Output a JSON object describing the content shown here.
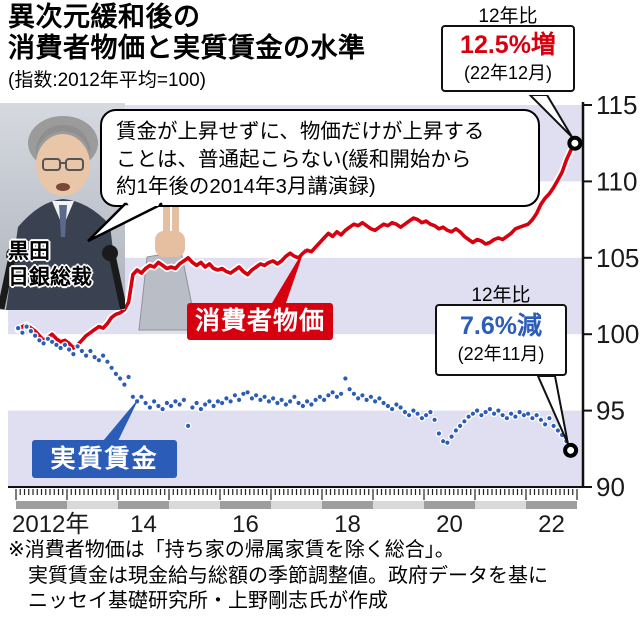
{
  "header": {
    "title_line1": "異次元緩和後の",
    "title_line2": "消費者物価と実質賃金の水準",
    "subtitle": "(指数:2012年平均=100)"
  },
  "photo": {
    "caption_line1": "黒田",
    "caption_line2": "日銀総裁"
  },
  "speech_bubble": {
    "line1": "賃金が上昇せずに、物価だけが上昇する",
    "line2": "ことは、普通起こらない(緩和開始から",
    "line3": "約1年後の2014年3月講演録)"
  },
  "callout_cpi": {
    "heading": "12年比",
    "value": "12.5%増",
    "date": "(22年12月)"
  },
  "callout_wage": {
    "heading": "12年比",
    "value": "7.6%減",
    "date": "(22年11月)"
  },
  "series_labels": {
    "cpi": "消費者物価",
    "wage": "実質賃金"
  },
  "footnote": {
    "line1": "※消費者物価は「持ち家の帰属家賃を除く総合」。",
    "line2": "実質賃金は現金給与総額の季節調整値。政府データを基に",
    "line3": "ニッセイ基礎研究所・上野剛志氏が作成"
  },
  "colors": {
    "cpi_red": "#d7000f",
    "wage_blue": "#2b5cb8",
    "band_lavender": "#e0def1",
    "year_bar_dark": "#9e9e9e",
    "year_bar_light": "#d9d9d9",
    "axis_black": "#111111"
  },
  "chart_data": {
    "type": "line",
    "title": "異次元緩和後の消費者物価と実質賃金の水準",
    "index_note": "指数:2012年平均=100",
    "x_start": "2012-01",
    "x_frequency": "monthly",
    "x_tick_labels": [
      "2012年",
      "14",
      "16",
      "18",
      "20",
      "22"
    ],
    "y_ticks": [
      115,
      110,
      105,
      100,
      95,
      90
    ],
    "ylim": [
      90,
      115
    ],
    "band_intervals": [
      [
        110,
        115
      ],
      [
        100,
        105
      ],
      [
        90,
        95
      ]
    ],
    "series": [
      {
        "name": "消費者物価",
        "style": "solid",
        "color": "#d7000f",
        "end_label": "12年比 12.5%増 (22年12月)",
        "end_value": 112.5,
        "values": [
          100.3,
          100.5,
          100.6,
          100.4,
          100.2,
          99.9,
          99.6,
          99.8,
          100.0,
          99.7,
          99.5,
          99.6,
          99.4,
          99.1,
          99.3,
          99.6,
          99.9,
          100.1,
          100.3,
          100.5,
          100.4,
          100.7,
          101.1,
          101.3,
          101.4,
          101.6,
          102.1,
          103.9,
          104.2,
          104.0,
          104.3,
          104.5,
          104.4,
          104.7,
          104.5,
          104.3,
          104.4,
          104.3,
          104.6,
          104.8,
          105.0,
          104.7,
          104.5,
          104.7,
          104.4,
          104.6,
          104.3,
          104.2,
          104.3,
          104.1,
          104.0,
          104.2,
          104.4,
          104.1,
          103.9,
          104.2,
          104.4,
          104.6,
          104.5,
          104.7,
          104.8,
          104.6,
          104.8,
          105.1,
          105.3,
          105.1,
          105.0,
          105.3,
          105.5,
          105.4,
          105.7,
          106.0,
          106.3,
          106.6,
          106.4,
          106.7,
          106.5,
          106.8,
          107.0,
          107.2,
          107.1,
          107.3,
          107.1,
          106.9,
          106.8,
          107.0,
          107.2,
          107.1,
          107.3,
          107.2,
          107.0,
          107.2,
          107.4,
          107.6,
          107.5,
          107.3,
          107.4,
          107.2,
          107.1,
          106.9,
          107.0,
          106.8,
          106.7,
          106.9,
          106.7,
          106.4,
          106.2,
          106.0,
          106.2,
          106.1,
          105.9,
          106.0,
          106.2,
          106.3,
          106.2,
          106.4,
          106.6,
          106.9,
          107.0,
          107.1,
          107.2,
          107.5,
          107.9,
          108.5,
          108.9,
          109.2,
          109.6,
          110.1,
          110.6,
          111.4,
          112.0,
          112.5
        ]
      },
      {
        "name": "実質賃金",
        "style": "dotted",
        "color": "#2b5cb8",
        "end_label": "12年比 7.6%減 (22年11月)",
        "end_value": 92.4,
        "values": [
          100.4,
          100.1,
          100.5,
          100.2,
          99.9,
          99.6,
          99.4,
          99.7,
          99.5,
          99.3,
          99.1,
          99.3,
          99.0,
          98.7,
          99.2,
          98.9,
          98.6,
          98.9,
          98.5,
          98.3,
          98.6,
          98.2,
          97.8,
          97.4,
          97.1,
          96.7,
          97.2,
          95.9,
          95.6,
          95.9,
          95.5,
          95.2,
          95.6,
          95.3,
          95.1,
          95.5,
          95.3,
          95.6,
          95.4,
          95.7,
          94.0,
          95.2,
          95.5,
          95.1,
          95.4,
          95.6,
          95.3,
          95.6,
          95.5,
          95.8,
          95.6,
          96.0,
          95.7,
          96.1,
          96.2,
          95.8,
          96.0,
          95.7,
          95.9,
          95.6,
          95.8,
          95.5,
          95.7,
          95.4,
          95.6,
          95.9,
          95.5,
          95.3,
          95.6,
          95.4,
          95.7,
          95.9,
          95.7,
          96.0,
          96.2,
          95.9,
          96.1,
          97.1,
          96.4,
          96.1,
          95.8,
          96.0,
          95.7,
          95.9,
          95.6,
          95.8,
          95.5,
          95.3,
          95.1,
          95.4,
          95.2,
          94.9,
          94.7,
          95.0,
          94.8,
          94.5,
          94.7,
          94.9,
          94.4,
          93.5,
          93.0,
          92.9,
          93.3,
          93.7,
          94.0,
          94.3,
          94.6,
          94.8,
          95.0,
          94.7,
          94.9,
          95.1,
          94.8,
          95.0,
          94.7,
          94.5,
          94.8,
          94.6,
          94.9,
          94.7,
          94.8,
          94.5,
          94.7,
          94.4,
          94.1,
          94.5,
          94.0,
          93.7,
          93.4,
          93.0,
          92.4
        ]
      }
    ]
  }
}
